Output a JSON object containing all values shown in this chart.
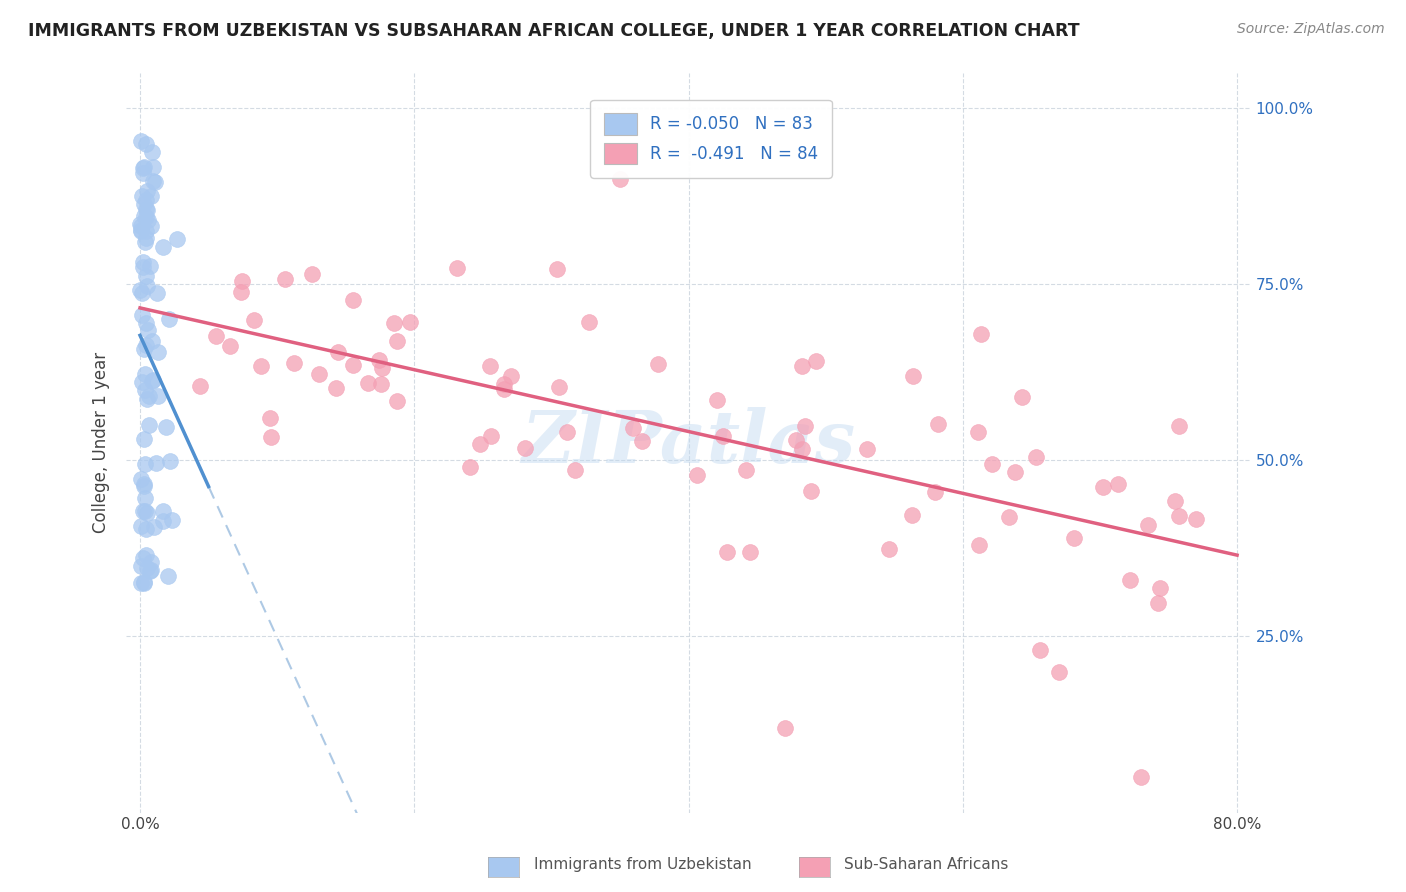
{
  "title": "IMMIGRANTS FROM UZBEKISTAN VS SUBSAHARAN AFRICAN COLLEGE, UNDER 1 YEAR CORRELATION CHART",
  "source": "Source: ZipAtlas.com",
  "ylabel": "College, Under 1 year",
  "color_blue": "#a8c8f0",
  "color_pink": "#f4a0b4",
  "color_blue_line": "#5090d0",
  "color_pink_line": "#e06080",
  "color_blue_dash": "#a0c0e0",
  "background": "#ffffff",
  "grid_color": "#d0d8e0",
  "watermark": "ZIPatlas",
  "R1": -0.05,
  "N1": 83,
  "R2": -0.491,
  "N2": 84,
  "xlim": [
    0.0,
    0.8
  ],
  "ylim": [
    0.0,
    1.05
  ],
  "x_ticks": [
    0.0,
    0.2,
    0.4,
    0.6,
    0.8
  ],
  "x_tick_labels": [
    "0.0%",
    "",
    "",
    "",
    "80.0%"
  ],
  "y_ticks": [
    0.25,
    0.5,
    0.75,
    1.0
  ],
  "y_tick_labels_right": [
    "25.0%",
    "50.0%",
    "75.0%",
    "100.0%"
  ]
}
